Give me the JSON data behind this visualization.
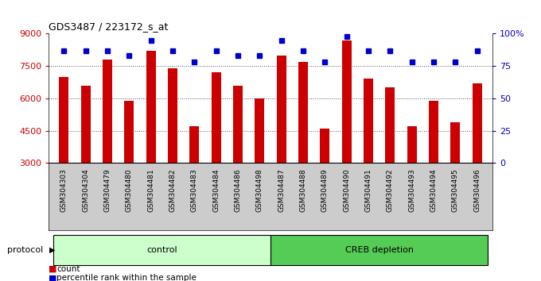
{
  "title": "GDS3487 / 223172_s_at",
  "samples": [
    "GSM304303",
    "GSM304304",
    "GSM304479",
    "GSM304480",
    "GSM304481",
    "GSM304482",
    "GSM304483",
    "GSM304484",
    "GSM304486",
    "GSM304498",
    "GSM304487",
    "GSM304488",
    "GSM304489",
    "GSM304490",
    "GSM304491",
    "GSM304492",
    "GSM304493",
    "GSM304494",
    "GSM304495",
    "GSM304496"
  ],
  "counts": [
    7000,
    6600,
    7800,
    5900,
    8200,
    7400,
    4700,
    7200,
    6600,
    6000,
    8000,
    7700,
    4600,
    8700,
    6900,
    6500,
    4700,
    5900,
    4900,
    6700
  ],
  "percentiles": [
    87,
    87,
    87,
    83,
    95,
    87,
    78,
    87,
    83,
    83,
    95,
    87,
    78,
    98,
    87,
    87,
    78,
    78,
    78,
    87
  ],
  "control_count": 10,
  "creb_count": 10,
  "ylim_left": [
    3000,
    9000
  ],
  "ylim_right": [
    0,
    100
  ],
  "yticks_left": [
    3000,
    4500,
    6000,
    7500,
    9000
  ],
  "yticks_right": [
    0,
    25,
    50,
    75,
    100
  ],
  "bar_color": "#cc0000",
  "dot_color": "#0000cc",
  "control_bg": "#ccffcc",
  "creb_bg": "#55cc55",
  "tick_label_color_left": "#cc0000",
  "tick_label_color_right": "#0000cc",
  "grid_color": "#555555",
  "xlabel_bg": "#cccccc",
  "legend_count_color": "#cc0000",
  "legend_pct_color": "#0000cc",
  "bar_width": 0.45
}
